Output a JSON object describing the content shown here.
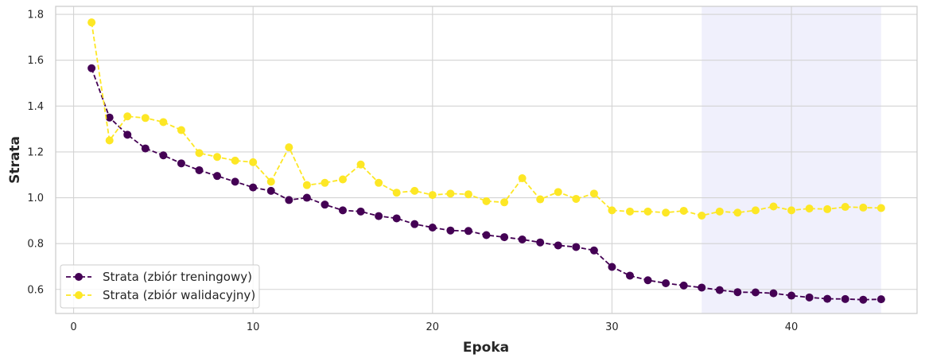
{
  "chart_data": {
    "type": "line",
    "xlabel": "Epoka",
    "ylabel": "Strata",
    "xlim": [
      -1,
      47
    ],
    "ylim": [
      0.495,
      1.835
    ],
    "xticks": [
      0,
      10,
      20,
      30,
      40
    ],
    "yticks": [
      0.6,
      0.8,
      1.0,
      1.2,
      1.4,
      1.6,
      1.8
    ],
    "xtick_labels": [
      "0",
      "10",
      "20",
      "30",
      "40"
    ],
    "ytick_labels": [
      "0.6",
      "0.8",
      "1.0",
      "1.2",
      "1.4",
      "1.6",
      "1.8"
    ],
    "grid": true,
    "legend_position": "lower-left",
    "highlight_span": [
      35,
      45
    ],
    "highlight_color": "#e6e6fa",
    "x": [
      1,
      2,
      3,
      4,
      5,
      6,
      7,
      8,
      9,
      10,
      11,
      12,
      13,
      14,
      15,
      16,
      17,
      18,
      19,
      20,
      21,
      22,
      23,
      24,
      25,
      26,
      27,
      28,
      29,
      30,
      31,
      32,
      33,
      34,
      35,
      36,
      37,
      38,
      39,
      40,
      41,
      42,
      43,
      44,
      45
    ],
    "series": [
      {
        "name": "Strata (zbiór treningowy)",
        "color": "#440154",
        "values": [
          1.565,
          1.35,
          1.275,
          1.215,
          1.185,
          1.15,
          1.12,
          1.095,
          1.07,
          1.045,
          1.03,
          0.99,
          1.0,
          0.97,
          0.945,
          0.94,
          0.92,
          0.91,
          0.885,
          0.87,
          0.857,
          0.855,
          0.837,
          0.828,
          0.818,
          0.805,
          0.792,
          0.785,
          0.77,
          0.698,
          0.66,
          0.64,
          0.627,
          0.617,
          0.608,
          0.597,
          0.588,
          0.587,
          0.583,
          0.573,
          0.565,
          0.559,
          0.558,
          0.555,
          0.557
        ]
      },
      {
        "name": "Strata (zbiór walidacyjny)",
        "color": "#fde725",
        "values": [
          1.765,
          1.25,
          1.355,
          1.348,
          1.33,
          1.295,
          1.195,
          1.178,
          1.162,
          1.155,
          1.07,
          1.22,
          1.055,
          1.065,
          1.08,
          1.145,
          1.065,
          1.022,
          1.03,
          1.012,
          1.018,
          1.015,
          0.985,
          0.98,
          1.085,
          0.993,
          1.025,
          0.995,
          1.018,
          0.945,
          0.94,
          0.94,
          0.935,
          0.943,
          0.922,
          0.94,
          0.935,
          0.945,
          0.962,
          0.945,
          0.953,
          0.95,
          0.96,
          0.957,
          0.955
        ]
      }
    ]
  }
}
